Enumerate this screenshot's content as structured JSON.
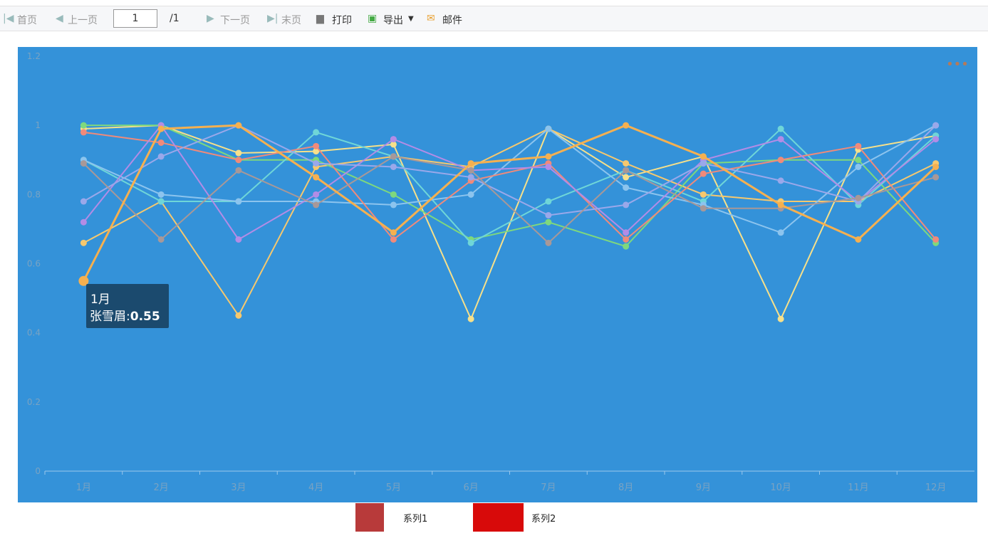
{
  "toolbar": {
    "first": "首页",
    "prev": "上一页",
    "page": "1",
    "total": "/1",
    "next": "下一页",
    "last": "末页",
    "print": "打印",
    "export": "导出",
    "mail": "邮件"
  },
  "chart_data": {
    "type": "line",
    "categories": [
      "1月",
      "2月",
      "3月",
      "4月",
      "5月",
      "6月",
      "7月",
      "8月",
      "9月",
      "10月",
      "11月",
      "12月"
    ],
    "ylim": [
      0,
      1.2
    ],
    "yticks": [
      0,
      0.2,
      0.4,
      0.6,
      0.8,
      1,
      1.2
    ],
    "grid": false,
    "background": "#3492d9",
    "series": [
      {
        "color": "#f7e08a",
        "values": [
          0.99,
          1.0,
          0.92,
          0.925,
          0.945,
          0.44,
          0.99,
          0.85,
          0.91,
          0.44,
          0.93,
          0.97
        ]
      },
      {
        "color": "#f6c86e",
        "values": [
          0.66,
          0.78,
          0.45,
          0.88,
          0.91,
          0.88,
          0.99,
          0.89,
          0.8,
          0.78,
          0.78,
          0.89
        ]
      },
      {
        "color": "#7ed87e",
        "values": [
          1.0,
          1.0,
          0.9,
          0.9,
          0.8,
          0.67,
          0.72,
          0.65,
          0.89,
          0.9,
          0.9,
          0.66
        ]
      },
      {
        "color": "#6fd6d8",
        "values": [
          0.9,
          0.78,
          0.78,
          0.98,
          0.91,
          0.66,
          0.78,
          0.87,
          0.78,
          0.99,
          0.77,
          0.97
        ]
      },
      {
        "color": "#8cc4ee",
        "values": [
          0.9,
          0.8,
          0.78,
          0.78,
          0.77,
          0.8,
          0.99,
          0.82,
          0.77,
          0.69,
          0.88,
          1.0
        ]
      },
      {
        "color": "#f08a7a",
        "values": [
          0.98,
          0.95,
          0.9,
          0.94,
          0.67,
          0.84,
          0.89,
          0.67,
          0.86,
          0.9,
          0.94,
          0.67
        ]
      },
      {
        "color": "#b38ce6",
        "values": [
          0.72,
          1.0,
          0.67,
          0.8,
          0.96,
          0.87,
          0.88,
          0.69,
          0.9,
          0.96,
          0.78,
          0.96
        ]
      },
      {
        "color": "#9aa8ea",
        "values": [
          0.78,
          0.91,
          1.0,
          0.89,
          0.88,
          0.85,
          0.74,
          0.77,
          0.89,
          0.84,
          0.78,
          1.0
        ]
      },
      {
        "color": "#a89898",
        "values": [
          0.89,
          0.67,
          0.87,
          0.77,
          0.91,
          0.87,
          0.66,
          0.87,
          0.76,
          0.76,
          0.79,
          0.85
        ]
      },
      {
        "name": "张雪眉",
        "color": "#f5b050",
        "values": [
          0.55,
          0.99,
          1.0,
          0.85,
          0.69,
          0.89,
          0.91,
          1.0,
          0.91,
          0.77,
          0.67,
          0.88
        ]
      }
    ]
  },
  "legend": [
    "系列1",
    "系列2"
  ]
}
